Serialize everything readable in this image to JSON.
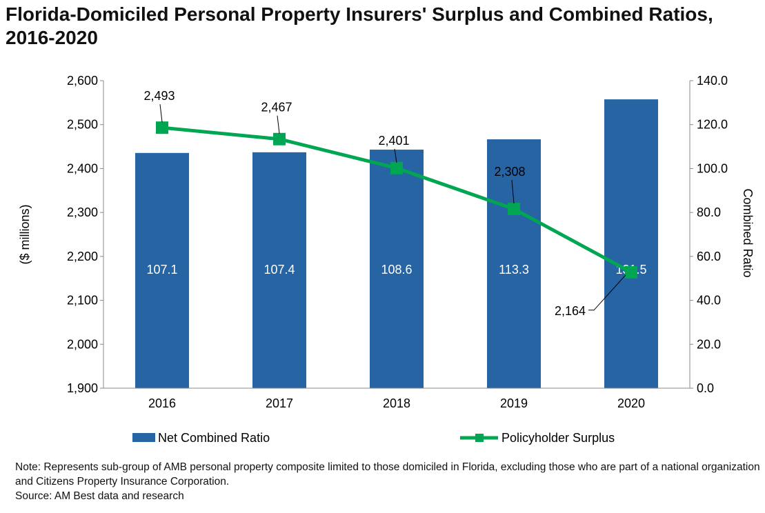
{
  "chart_data": {
    "type": "bar+line",
    "title": "Florida-Domiciled Personal Property Insurers' Surplus and Combined Ratios, 2016-2020",
    "categories": [
      "2016",
      "2017",
      "2018",
      "2019",
      "2020"
    ],
    "series": [
      {
        "name": "Net Combined Ratio",
        "type": "bar",
        "axis": "right",
        "values": [
          107.1,
          107.4,
          108.6,
          113.3,
          131.5
        ],
        "color": "#2764A3"
      },
      {
        "name": "Policyholder Surplus",
        "type": "line",
        "axis": "left",
        "values": [
          2493,
          2467,
          2401,
          2308,
          2164
        ],
        "color": "#00A651"
      }
    ],
    "ylabel": "($ millions)",
    "y2label": "Combined Ratio",
    "ylim": [
      1900,
      2600
    ],
    "y2lim": [
      0,
      140
    ],
    "yticks": [
      "1,900",
      "2,000",
      "2,100",
      "2,200",
      "2,300",
      "2,400",
      "2,500",
      "2,600"
    ],
    "y2ticks": [
      "0.0",
      "20.0",
      "40.0",
      "60.0",
      "80.0",
      "100.0",
      "120.0",
      "140.0"
    ],
    "bar_labels": [
      "107.1",
      "107.4",
      "108.6",
      "113.3",
      "131.5"
    ],
    "line_labels": [
      "2,493",
      "2,467",
      "2,401",
      "2,308",
      "2,164"
    ],
    "grid": false,
    "legend": "bottom"
  },
  "note": "Note: Represents sub-group of AMB personal property composite limited to those domiciled in Florida, excluding those who are part of a national organization and Citizens Property Insurance Corporation.",
  "source": "Source: AM Best data and research"
}
